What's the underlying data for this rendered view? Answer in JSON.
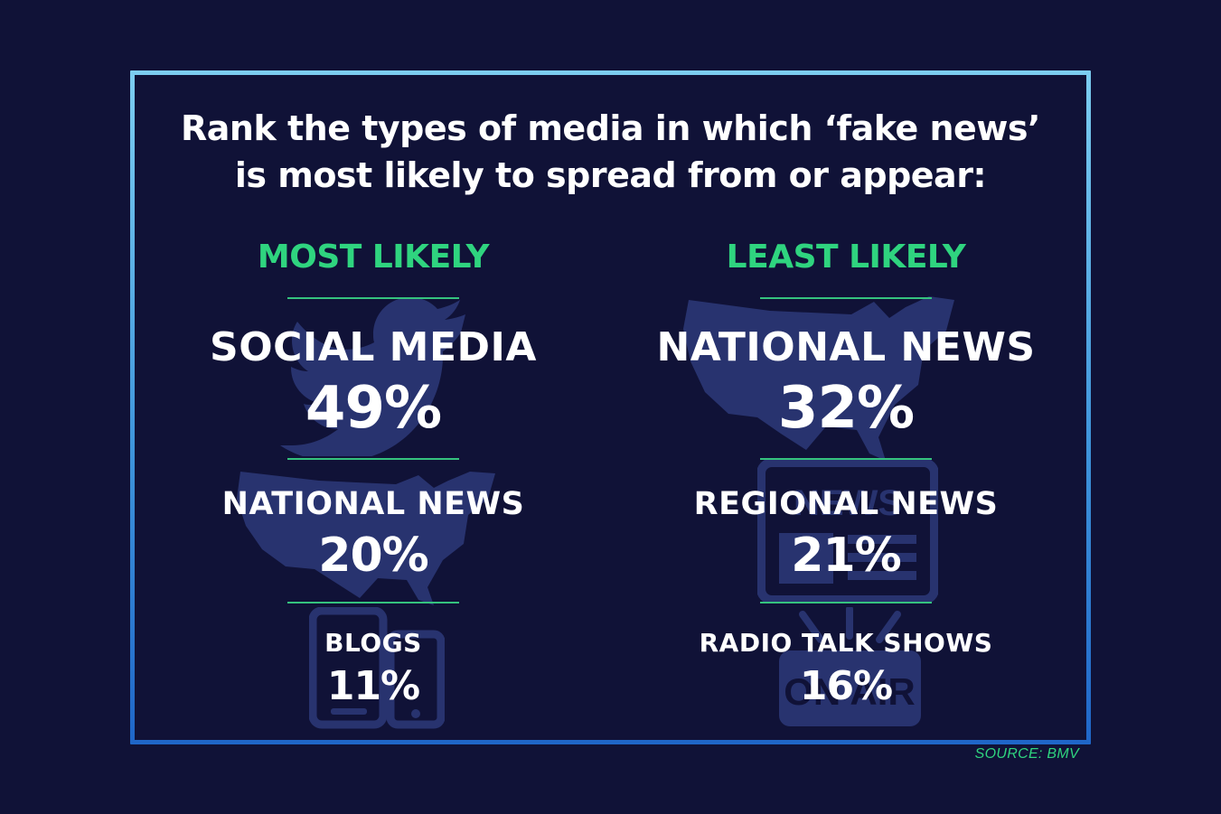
{
  "title_line1": "Rank the types of media in which ‘fake news’",
  "title_line2": "is most likely to spread from or appear:",
  "colors": {
    "background": "#101237",
    "accent_green": "#2fd47f",
    "frame_top": "#7ccdf0",
    "frame_bottom": "#1f66c8",
    "icon_fill": "#28336f"
  },
  "icons": [
    "twitter-bird-icon",
    "usa-map-icon",
    "smartphone-tablet-icon",
    "newspaper-icon",
    "on-air-sign-icon"
  ],
  "on_air_text": "ON AIR",
  "news_text": "NEWS",
  "source": "SOURCE: BMV",
  "chart_data": {
    "type": "table",
    "columns": [
      {
        "header": "MOST LIKELY",
        "rows": [
          {
            "label": "SOCIAL MEDIA",
            "value_text": "49%",
            "value": 49
          },
          {
            "label": "NATIONAL NEWS",
            "value_text": "20%",
            "value": 20
          },
          {
            "label": "BLOGS",
            "value_text": "11%",
            "value": 11
          }
        ]
      },
      {
        "header": "LEAST LIKELY",
        "rows": [
          {
            "label": "NATIONAL NEWS",
            "value_text": "32%",
            "value": 32
          },
          {
            "label": "REGIONAL NEWS",
            "value_text": "21%",
            "value": 21
          },
          {
            "label": "RADIO TALK SHOWS",
            "value_text": "16%",
            "value": 16
          }
        ]
      }
    ]
  }
}
